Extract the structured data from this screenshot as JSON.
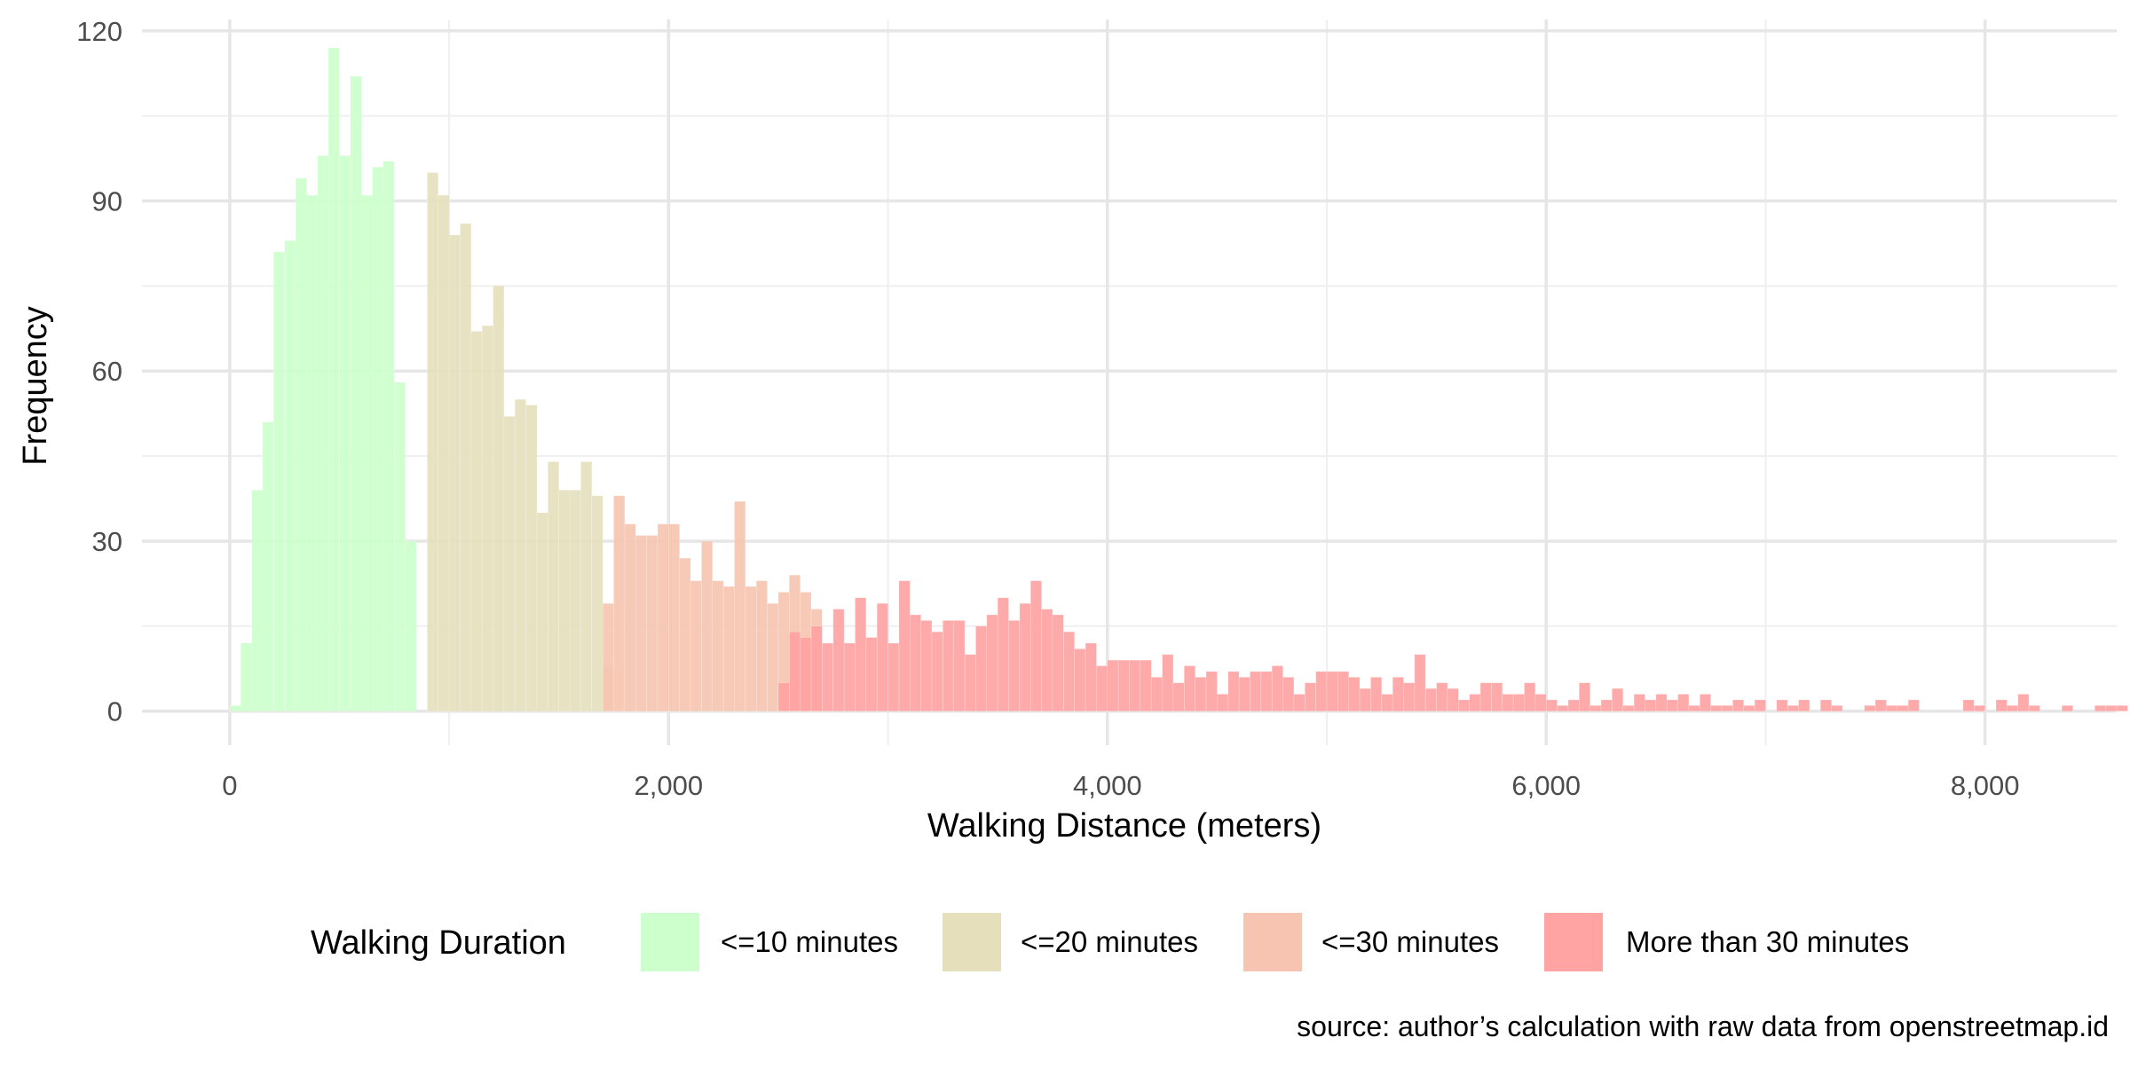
{
  "chart_data": {
    "type": "bar",
    "subtype": "stacked-histogram",
    "title": "",
    "xlabel": "Walking Distance (meters)",
    "ylabel": "Frequency",
    "caption": "source: author’s calculation with raw data from openstreetmap.id",
    "xlim": [
      -400,
      8600
    ],
    "ylim": [
      -6,
      122
    ],
    "x_ticks": [
      0,
      2000,
      4000,
      6000,
      8000
    ],
    "x_tick_labels": [
      "0",
      "2,000",
      "4,000",
      "6,000",
      "8,000"
    ],
    "y_ticks": [
      0,
      30,
      60,
      90,
      120
    ],
    "y_tick_labels": [
      "0",
      "30",
      "60",
      "90",
      "120"
    ],
    "grid": true,
    "legend_position": "bottom",
    "legend_title": "Walking Duration",
    "bin_width": 50,
    "bin_start": 0,
    "series": [
      {
        "name": "<=10 minutes",
        "color": "#ccffcc",
        "values": [
          1,
          12,
          39,
          51,
          81,
          83,
          94,
          91,
          98,
          117,
          98,
          112,
          91,
          96,
          97,
          58,
          30
        ]
      },
      {
        "name": "<=20 minutes",
        "color": "#e5dfbc",
        "values": [
          0,
          0,
          0,
          0,
          0,
          0,
          0,
          0,
          0,
          0,
          0,
          0,
          0,
          0,
          0,
          0,
          0,
          0,
          95,
          91,
          84,
          86,
          67,
          68,
          75,
          52,
          55,
          54,
          35,
          44,
          39,
          39,
          44,
          38,
          8
        ]
      },
      {
        "name": "<=30 minutes",
        "color": "#f6c4b1",
        "values": [
          0,
          0,
          0,
          0,
          0,
          0,
          0,
          0,
          0,
          0,
          0,
          0,
          0,
          0,
          0,
          0,
          0,
          0,
          0,
          0,
          0,
          0,
          0,
          0,
          0,
          0,
          0,
          0,
          0,
          0,
          0,
          0,
          0,
          0,
          19,
          38,
          33,
          31,
          31,
          33,
          33,
          27,
          23,
          30,
          23,
          22,
          37,
          22,
          23,
          19,
          21,
          24,
          21,
          18
        ]
      },
      {
        "name": "More than 30 minutes",
        "color": "#ffa3a3",
        "values": [
          0,
          0,
          0,
          0,
          0,
          0,
          0,
          0,
          0,
          0,
          0,
          0,
          0,
          0,
          0,
          0,
          0,
          0,
          0,
          0,
          0,
          0,
          0,
          0,
          0,
          0,
          0,
          0,
          0,
          0,
          0,
          0,
          0,
          0,
          0,
          0,
          0,
          0,
          0,
          0,
          0,
          0,
          0,
          0,
          0,
          0,
          0,
          0,
          0,
          0,
          5,
          14,
          13,
          15,
          12,
          18,
          12,
          20,
          13,
          19,
          12,
          23,
          17,
          16,
          14,
          16,
          16,
          10,
          15,
          17,
          20,
          16,
          19,
          23,
          18,
          17,
          14,
          11,
          12,
          8,
          9,
          9,
          9,
          9,
          6,
          10,
          5,
          8,
          6,
          7,
          3,
          7,
          6,
          7,
          7,
          8,
          6,
          3,
          5,
          7,
          7,
          7,
          6,
          4,
          6,
          3,
          6,
          5,
          10,
          4,
          5,
          4,
          2,
          3,
          5,
          5,
          3,
          3,
          5,
          3,
          2,
          1,
          2,
          5,
          1,
          2,
          4,
          1,
          3,
          2,
          3,
          2,
          3,
          1,
          3,
          1,
          1,
          2,
          1,
          2,
          0,
          2,
          1,
          2,
          0,
          2,
          1,
          0,
          0,
          1,
          2,
          1,
          1,
          2,
          0,
          0,
          0,
          0,
          2,
          1,
          0,
          2,
          1,
          3,
          1,
          0,
          0,
          1,
          0,
          0,
          1,
          1,
          1,
          0,
          0,
          0,
          0,
          0,
          0,
          1,
          0,
          0,
          0,
          1,
          0,
          0,
          0,
          0,
          1,
          0,
          0,
          0,
          0,
          1,
          1,
          0,
          0
        ]
      }
    ]
  }
}
